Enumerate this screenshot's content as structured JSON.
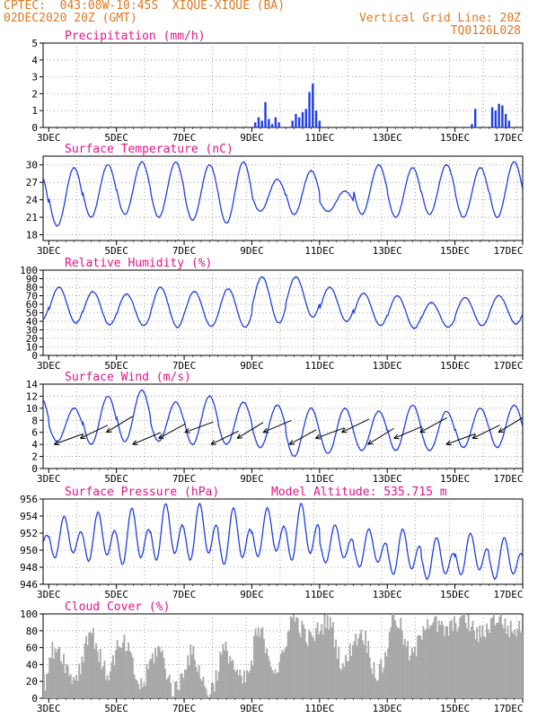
{
  "header": {
    "line1": "CPTEC:  043:08W-10:45S  XIQUE-XIQUE (BA)",
    "line2": "02DEC2020 20Z (GMT)",
    "grid_line": "Vertical Grid Line: 20Z",
    "code": "TQ0126L028"
  },
  "colors": {
    "header": "#e07820",
    "title": "#e0158a",
    "series": "#1f3fe0",
    "bars": "#1f3fe0",
    "arrows": "#000000",
    "cloud": "#a8a8a8"
  },
  "chart_data": [
    {
      "type": "bar",
      "title": "Precipitation (mm/h)",
      "x_ticks": [
        "3DEC",
        "5DEC",
        "7DEC",
        "9DEC",
        "11DEC",
        "13DEC",
        "15DEC",
        "17DEC"
      ],
      "xlim_days": [
        2.833,
        17.0
      ],
      "ylim": [
        0,
        5
      ],
      "y_ticks": [
        0,
        1,
        2,
        3,
        4,
        5
      ],
      "grid": true,
      "series": [
        {
          "x": [
            9.1,
            9.2,
            9.3,
            9.4,
            9.5,
            9.6,
            9.7,
            9.8,
            10.2,
            10.3,
            10.4,
            10.5,
            10.6,
            10.7,
            10.8,
            10.9,
            11.0,
            15.5,
            15.6,
            16.1,
            16.2,
            16.3,
            16.4,
            16.5,
            16.6
          ],
          "values": [
            0.3,
            0.6,
            0.4,
            1.5,
            0.5,
            0.2,
            0.6,
            0.3,
            0.4,
            0.8,
            0.6,
            0.9,
            1.1,
            2.1,
            2.6,
            1.0,
            0.4,
            0.2,
            1.1,
            1.2,
            1.0,
            1.4,
            1.3,
            0.8,
            0.4
          ]
        }
      ]
    },
    {
      "type": "line",
      "title": "Surface Temperature (nC)",
      "x_ticks": [
        "3DEC",
        "5DEC",
        "7DEC",
        "9DEC",
        "11DEC",
        "13DEC",
        "15DEC",
        "17DEC"
      ],
      "xlim_days": [
        2.833,
        17.0
      ],
      "ylim": [
        17,
        31.5
      ],
      "y_ticks": [
        18,
        21,
        24,
        27,
        30
      ],
      "grid": true,
      "series": [
        {
          "daily_max": [
            28.5,
            29.5,
            30.0,
            30.5,
            30.5,
            30.0,
            30.5,
            27.5,
            29.0,
            25.5,
            30.0,
            29.5,
            30.0,
            29.5,
            30.5,
            29.5
          ],
          "daily_min": [
            18.0,
            19.5,
            21.0,
            21.5,
            21.0,
            20.5,
            20.0,
            22.0,
            21.5,
            22.0,
            21.5,
            21.0,
            21.5,
            21.0,
            21.0,
            20.5
          ]
        }
      ]
    },
    {
      "type": "line",
      "title": "Relative Humidity (%)",
      "x_ticks": [
        "3DEC",
        "5DEC",
        "7DEC",
        "9DEC",
        "11DEC",
        "13DEC",
        "15DEC",
        "17DEC"
      ],
      "xlim_days": [
        2.833,
        17.0
      ],
      "ylim": [
        0,
        100
      ],
      "y_ticks": [
        0,
        10,
        20,
        30,
        40,
        50,
        60,
        70,
        80,
        90,
        100
      ],
      "grid": true,
      "series": [
        {
          "daily_max": [
            86,
            80,
            75,
            72,
            80,
            75,
            78,
            92,
            92,
            80,
            73,
            70,
            62,
            68,
            70,
            88
          ],
          "daily_min": [
            42,
            38,
            36,
            35,
            33,
            34,
            33,
            38,
            45,
            40,
            35,
            32,
            33,
            35,
            37,
            43
          ]
        }
      ]
    },
    {
      "type": "line",
      "title": "Surface Wind (m/s)",
      "x_ticks": [
        "3DEC",
        "5DEC",
        "7DEC",
        "9DEC",
        "11DEC",
        "13DEC",
        "15DEC",
        "17DEC"
      ],
      "xlim_days": [
        2.833,
        17.0
      ],
      "ylim": [
        0,
        14
      ],
      "y_ticks": [
        0,
        2,
        4,
        6,
        8,
        10,
        12,
        14
      ],
      "grid": true,
      "series": [
        {
          "daily_max": [
            12,
            10,
            12,
            13,
            11,
            12,
            11,
            10.5,
            10,
            10,
            9.5,
            10.5,
            9.5,
            10,
            10.5,
            10.5
          ],
          "daily_min": [
            4.5,
            4.5,
            4.0,
            4.5,
            4.5,
            4.0,
            4.0,
            3.5,
            2.0,
            2.5,
            3.0,
            3.0,
            3.0,
            3.5,
            3.5,
            3.5
          ]
        },
        {
          "type": "vectors",
          "direction": "from east-northeast",
          "count": 18
        }
      ]
    },
    {
      "type": "line",
      "title": "Surface Pressure (hPa)",
      "annotation": "Model Altitude: 535.715 m",
      "x_ticks": [
        "3DEC",
        "5DEC",
        "7DEC",
        "9DEC",
        "11DEC",
        "13DEC",
        "15DEC",
        "17DEC"
      ],
      "xlim_days": [
        2.833,
        17.0
      ],
      "ylim": [
        946,
        956
      ],
      "y_ticks": [
        946,
        948,
        950,
        952,
        954,
        956
      ],
      "grid": true,
      "series": [
        {
          "daily_max": [
            953.2,
            954.0,
            954.5,
            955.0,
            955.5,
            955.5,
            955.0,
            955.0,
            955.5,
            953.0,
            952.5,
            952.5,
            951.5,
            952.0,
            951.5,
            951.0
          ],
          "daily_min": [
            949.0,
            948.5,
            948.0,
            947.5,
            948.0,
            948.0,
            947.5,
            948.5,
            948.0,
            948.0,
            947.5,
            946.5,
            946.0,
            946.5,
            946.0,
            946.0
          ]
        }
      ]
    },
    {
      "type": "area",
      "title": "Cloud Cover (%)",
      "x_ticks": [
        "3DEC",
        "5DEC",
        "7DEC",
        "9DEC",
        "11DEC",
        "13DEC",
        "15DEC",
        "17DEC"
      ],
      "xlim_days": [
        2.833,
        17.0
      ],
      "ylim": [
        0,
        100
      ],
      "y_ticks": [
        0,
        20,
        40,
        60,
        80,
        100
      ],
      "grid": true,
      "series": [
        {
          "daily_mean": [
            45,
            55,
            70,
            55,
            50,
            45,
            50,
            70,
            90,
            85,
            70,
            88,
            90,
            92,
            93,
            95
          ],
          "daily_min": [
            10,
            25,
            30,
            15,
            10,
            8,
            20,
            35,
            70,
            40,
            30,
            50,
            80,
            75,
            80,
            85
          ]
        }
      ]
    }
  ]
}
